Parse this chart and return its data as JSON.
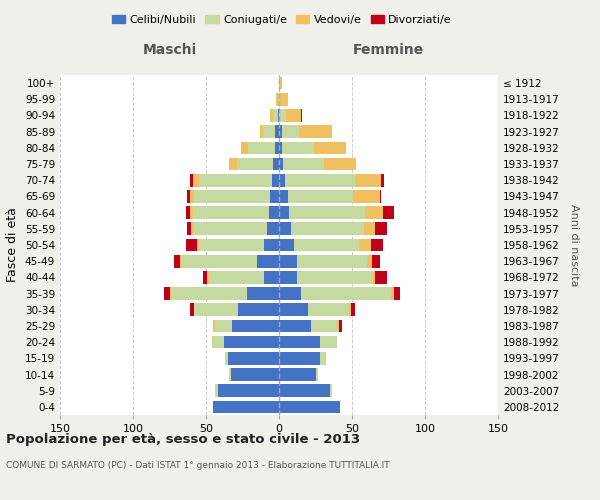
{
  "age_groups": [
    "0-4",
    "5-9",
    "10-14",
    "15-19",
    "20-24",
    "25-29",
    "30-34",
    "35-39",
    "40-44",
    "45-49",
    "50-54",
    "55-59",
    "60-64",
    "65-69",
    "70-74",
    "75-79",
    "80-84",
    "85-89",
    "90-94",
    "95-99",
    "100+"
  ],
  "birth_years": [
    "2008-2012",
    "2003-2007",
    "1998-2002",
    "1993-1997",
    "1988-1992",
    "1983-1987",
    "1978-1982",
    "1973-1977",
    "1968-1972",
    "1963-1967",
    "1958-1962",
    "1953-1957",
    "1948-1952",
    "1943-1947",
    "1938-1942",
    "1933-1937",
    "1928-1932",
    "1923-1927",
    "1918-1922",
    "1913-1917",
    "≤ 1912"
  ],
  "maschi_celibi": [
    45,
    42,
    33,
    35,
    38,
    32,
    28,
    22,
    10,
    15,
    10,
    8,
    7,
    6,
    5,
    4,
    3,
    3,
    1,
    0,
    0
  ],
  "maschi_coniugati": [
    0,
    2,
    1,
    2,
    8,
    12,
    30,
    52,
    38,
    52,
    45,
    50,
    52,
    52,
    50,
    25,
    18,
    8,
    3,
    1,
    0
  ],
  "maschi_vedovi": [
    0,
    0,
    0,
    0,
    0,
    1,
    0,
    1,
    1,
    1,
    1,
    2,
    2,
    3,
    4,
    5,
    5,
    2,
    2,
    1,
    0
  ],
  "maschi_divorziati": [
    0,
    0,
    0,
    0,
    0,
    0,
    3,
    4,
    3,
    4,
    8,
    3,
    3,
    2,
    2,
    0,
    0,
    0,
    0,
    0,
    0
  ],
  "femmine_celibi": [
    42,
    35,
    25,
    28,
    28,
    22,
    20,
    15,
    12,
    12,
    10,
    8,
    7,
    6,
    4,
    3,
    2,
    2,
    0,
    0,
    0
  ],
  "femmine_coniugati": [
    0,
    1,
    2,
    4,
    12,
    18,
    28,
    62,
    52,
    48,
    45,
    50,
    52,
    45,
    48,
    28,
    22,
    12,
    5,
    1,
    0
  ],
  "femmine_vedovi": [
    0,
    0,
    0,
    0,
    0,
    1,
    1,
    2,
    2,
    4,
    8,
    8,
    12,
    18,
    18,
    22,
    22,
    22,
    10,
    5,
    2
  ],
  "femmine_divorziati": [
    0,
    0,
    0,
    0,
    0,
    2,
    3,
    4,
    8,
    5,
    8,
    8,
    8,
    1,
    2,
    0,
    0,
    0,
    1,
    0,
    0
  ],
  "color_celibi": "#4472c4",
  "color_coniugati": "#c5d9a0",
  "color_vedovi": "#f0c060",
  "color_divorziati": "#c0001a",
  "xlim": 150,
  "title": "Popolazione per età, sesso e stato civile - 2013",
  "subtitle": "COMUNE DI SARMATO (PC) - Dati ISTAT 1° gennaio 2013 - Elaborazione TUTTITALIA.IT",
  "ylabel": "Fasce di età",
  "ylabel_right": "Anni di nascita",
  "label_maschi": "Maschi",
  "label_femmine": "Femmine",
  "legend_celibi": "Celibi/Nubili",
  "legend_coniugati": "Coniugati/e",
  "legend_vedovi": "Vedovi/e",
  "legend_divorziati": "Divorziati/e",
  "background_color": "#f0f0eb",
  "plot_bg": "#ffffff",
  "grid_color": "#cccccc",
  "xticks": [
    150,
    100,
    50,
    0,
    50,
    100,
    150
  ]
}
